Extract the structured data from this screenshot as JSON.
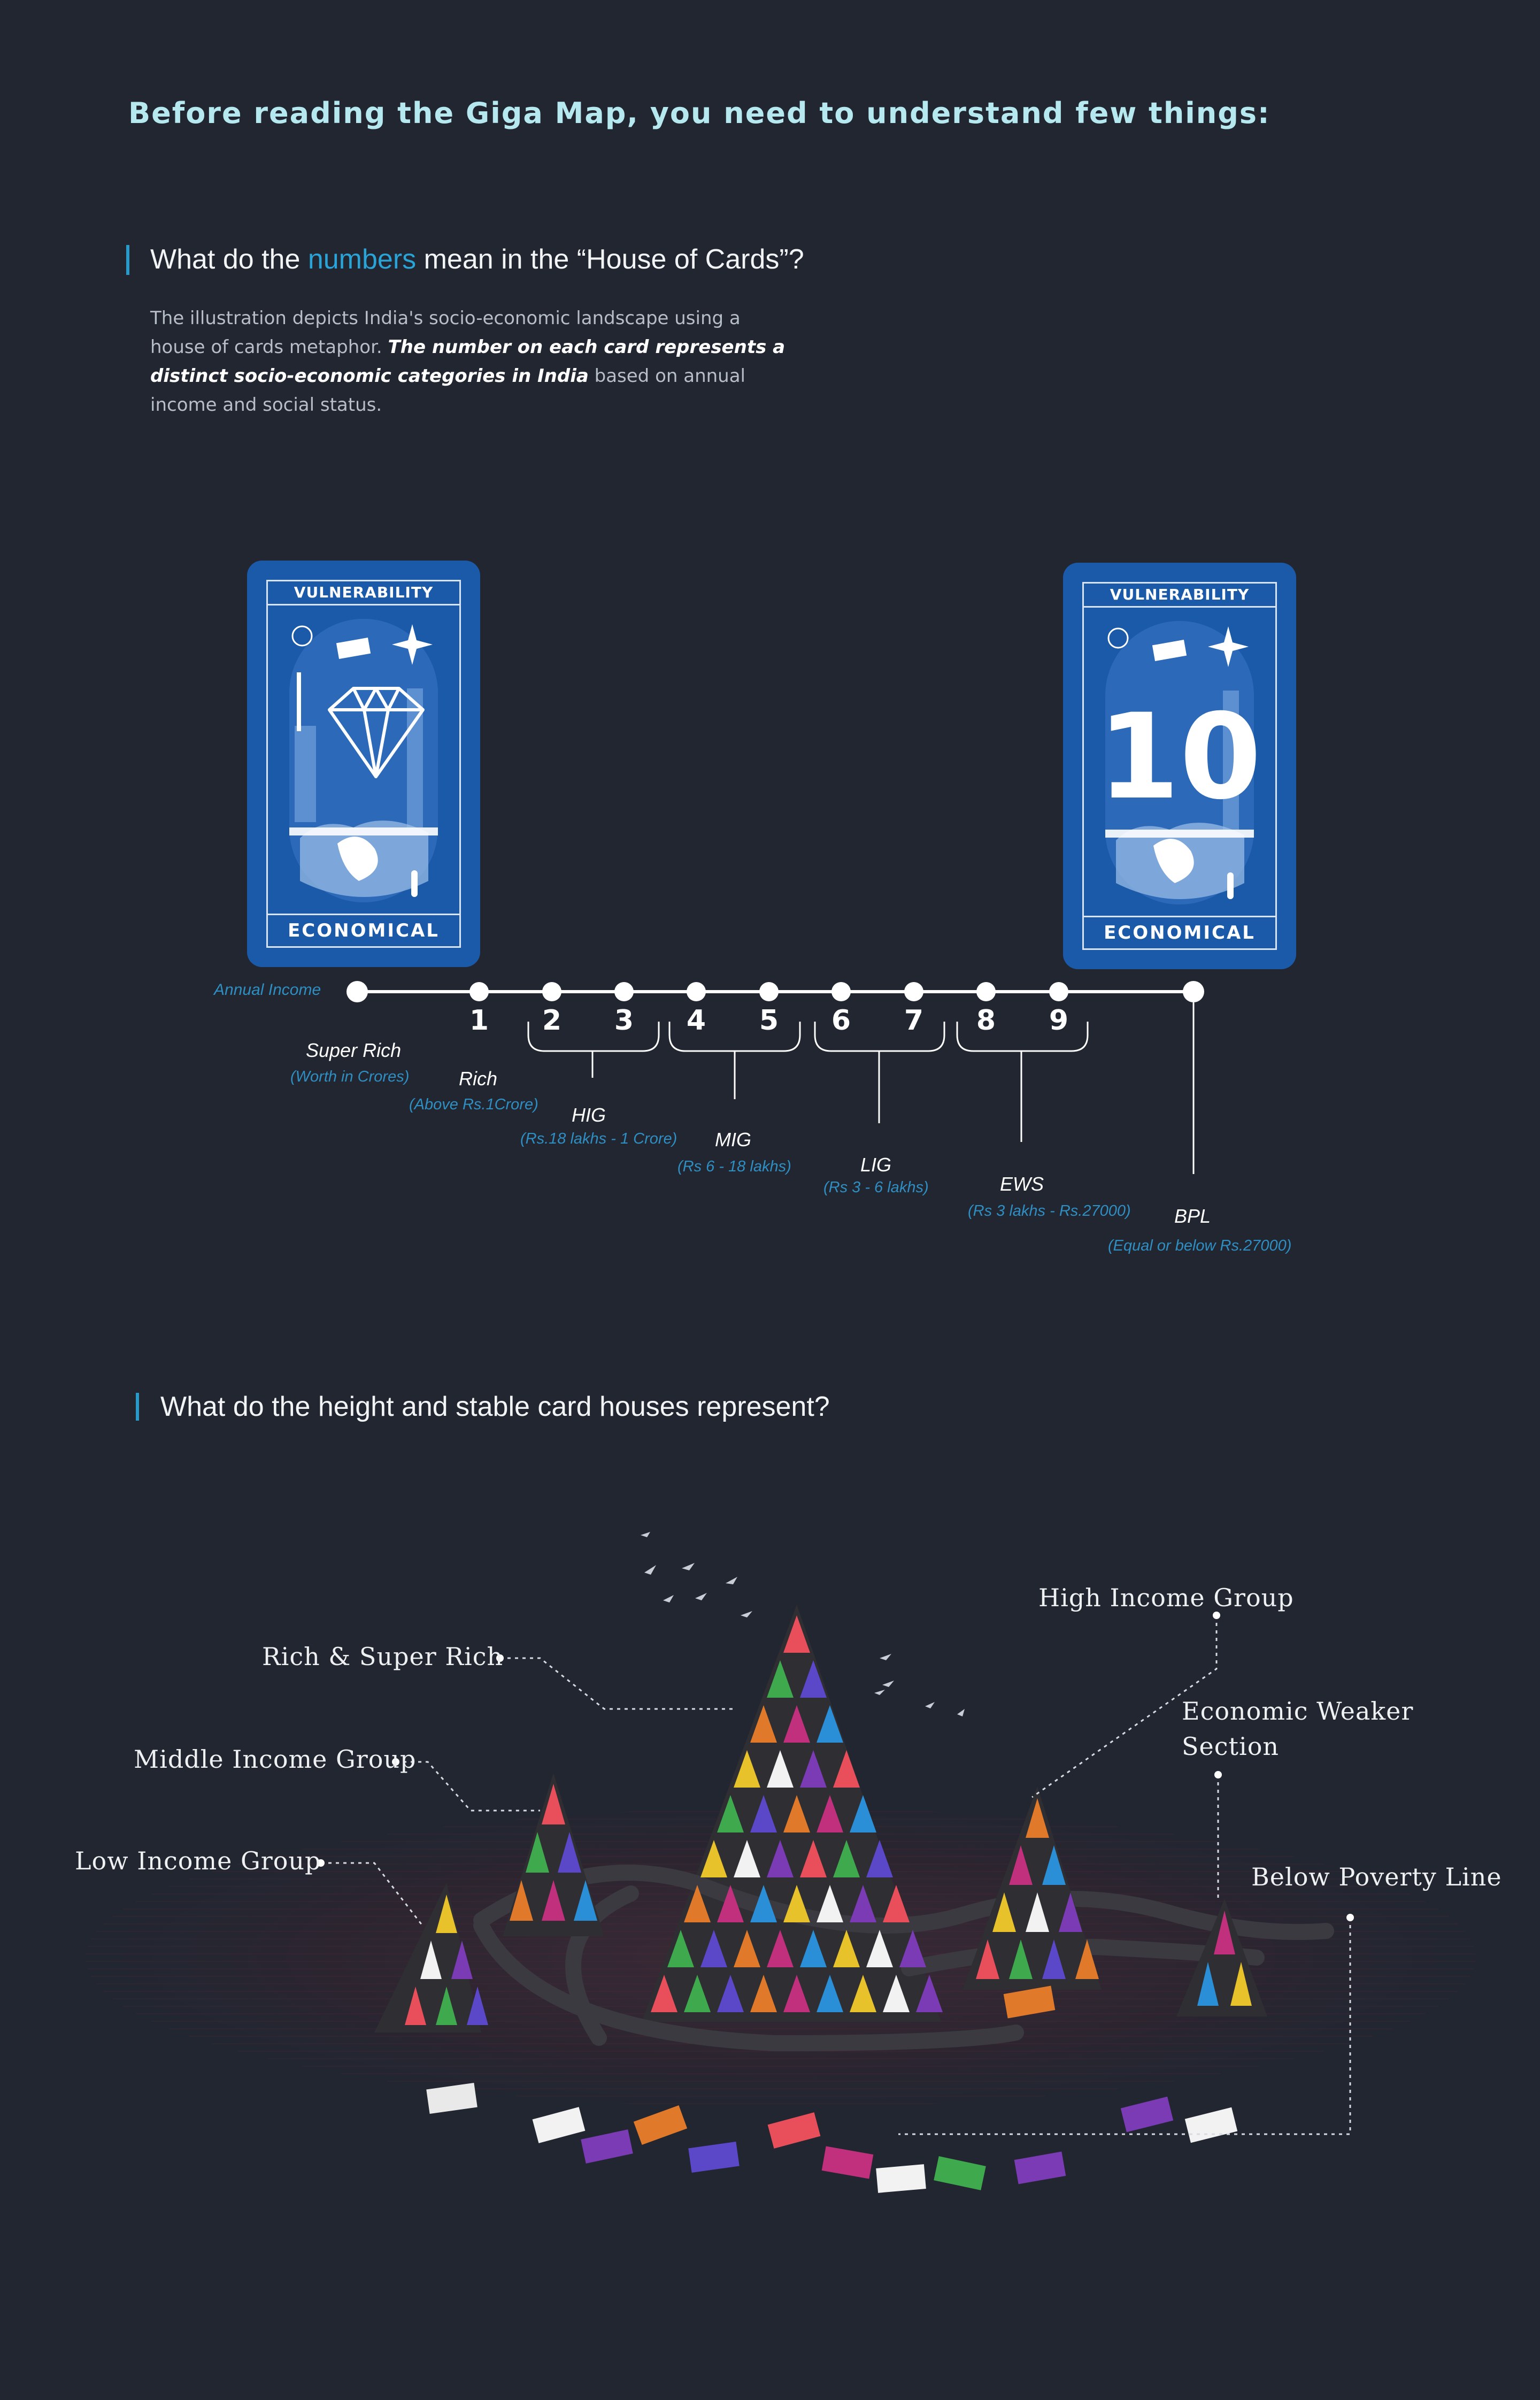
{
  "header": {
    "title": "Before reading the Giga Map, you need to understand few things:"
  },
  "section1": {
    "title_before": "What do the ",
    "title_accent": "numbers",
    "title_after": " mean in the “House of Cards”?",
    "para_1": "The illustration depicts India's socio-economic landscape using a house of cards metaphor. ",
    "para_bold": "The number on each card represents a distinct socio-economic categories in India",
    "para_2": "  based on annual income and social status."
  },
  "cards": {
    "left": {
      "top_label": "VULNERABILITY",
      "bottom_label": "ECONOMICAL",
      "icon": "diamond-icon"
    },
    "right": {
      "top_label": "VULNERABILITY",
      "bottom_label": "ECONOMICAL",
      "number": "10"
    }
  },
  "timeline": {
    "axis_label": "Annual Income",
    "numbers": [
      "1",
      "2",
      "3",
      "4",
      "5",
      "6",
      "7",
      "8",
      "9"
    ],
    "groups": [
      {
        "name": "Super Rich",
        "range": "(Worth in Crores)"
      },
      {
        "name": "Rich",
        "range": "(Above Rs.1Crore)"
      },
      {
        "name": "HIG",
        "range": "(Rs.18 lakhs - 1 Crore)"
      },
      {
        "name": "MIG",
        "range": "(Rs 6 - 18 lakhs)"
      },
      {
        "name": "LIG",
        "range": "(Rs 3 - 6 lakhs)"
      },
      {
        "name": "EWS",
        "range": "(Rs 3 lakhs - Rs.27000)"
      },
      {
        "name": "BPL",
        "range": "(Equal or below Rs.27000)"
      }
    ],
    "colors": {
      "line": "#ffffff",
      "range_text": "#2f8fc3",
      "card_blue": "#1b5aa8"
    }
  },
  "section2": {
    "title": "What do the height and stable card houses represent?",
    "labels": {
      "rich": "Rich & Super Rich",
      "mig": "Middle Income Group",
      "lig": "Low Income Group",
      "hig": "High Income Group",
      "ews_1": "Economic Weaker",
      "ews_2": "Section",
      "bpl": "Below Poverty Line"
    }
  }
}
